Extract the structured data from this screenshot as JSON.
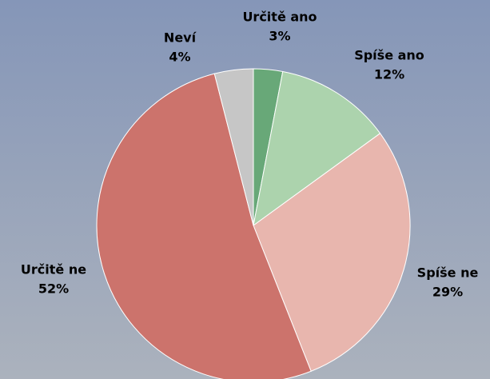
{
  "chart_data": {
    "type": "pie",
    "categories": [
      "Určitě ano",
      "Spíše ano",
      "Spíše ne",
      "Určitě ne",
      "Neví"
    ],
    "values": [
      3,
      12,
      29,
      52,
      4
    ],
    "value_labels": [
      "3%",
      "12%",
      "29%",
      "52%",
      "4%"
    ],
    "colors": [
      "#68a878",
      "#acd3ad",
      "#e8b6ae",
      "#cc736c",
      "#c6c6c6"
    ]
  }
}
